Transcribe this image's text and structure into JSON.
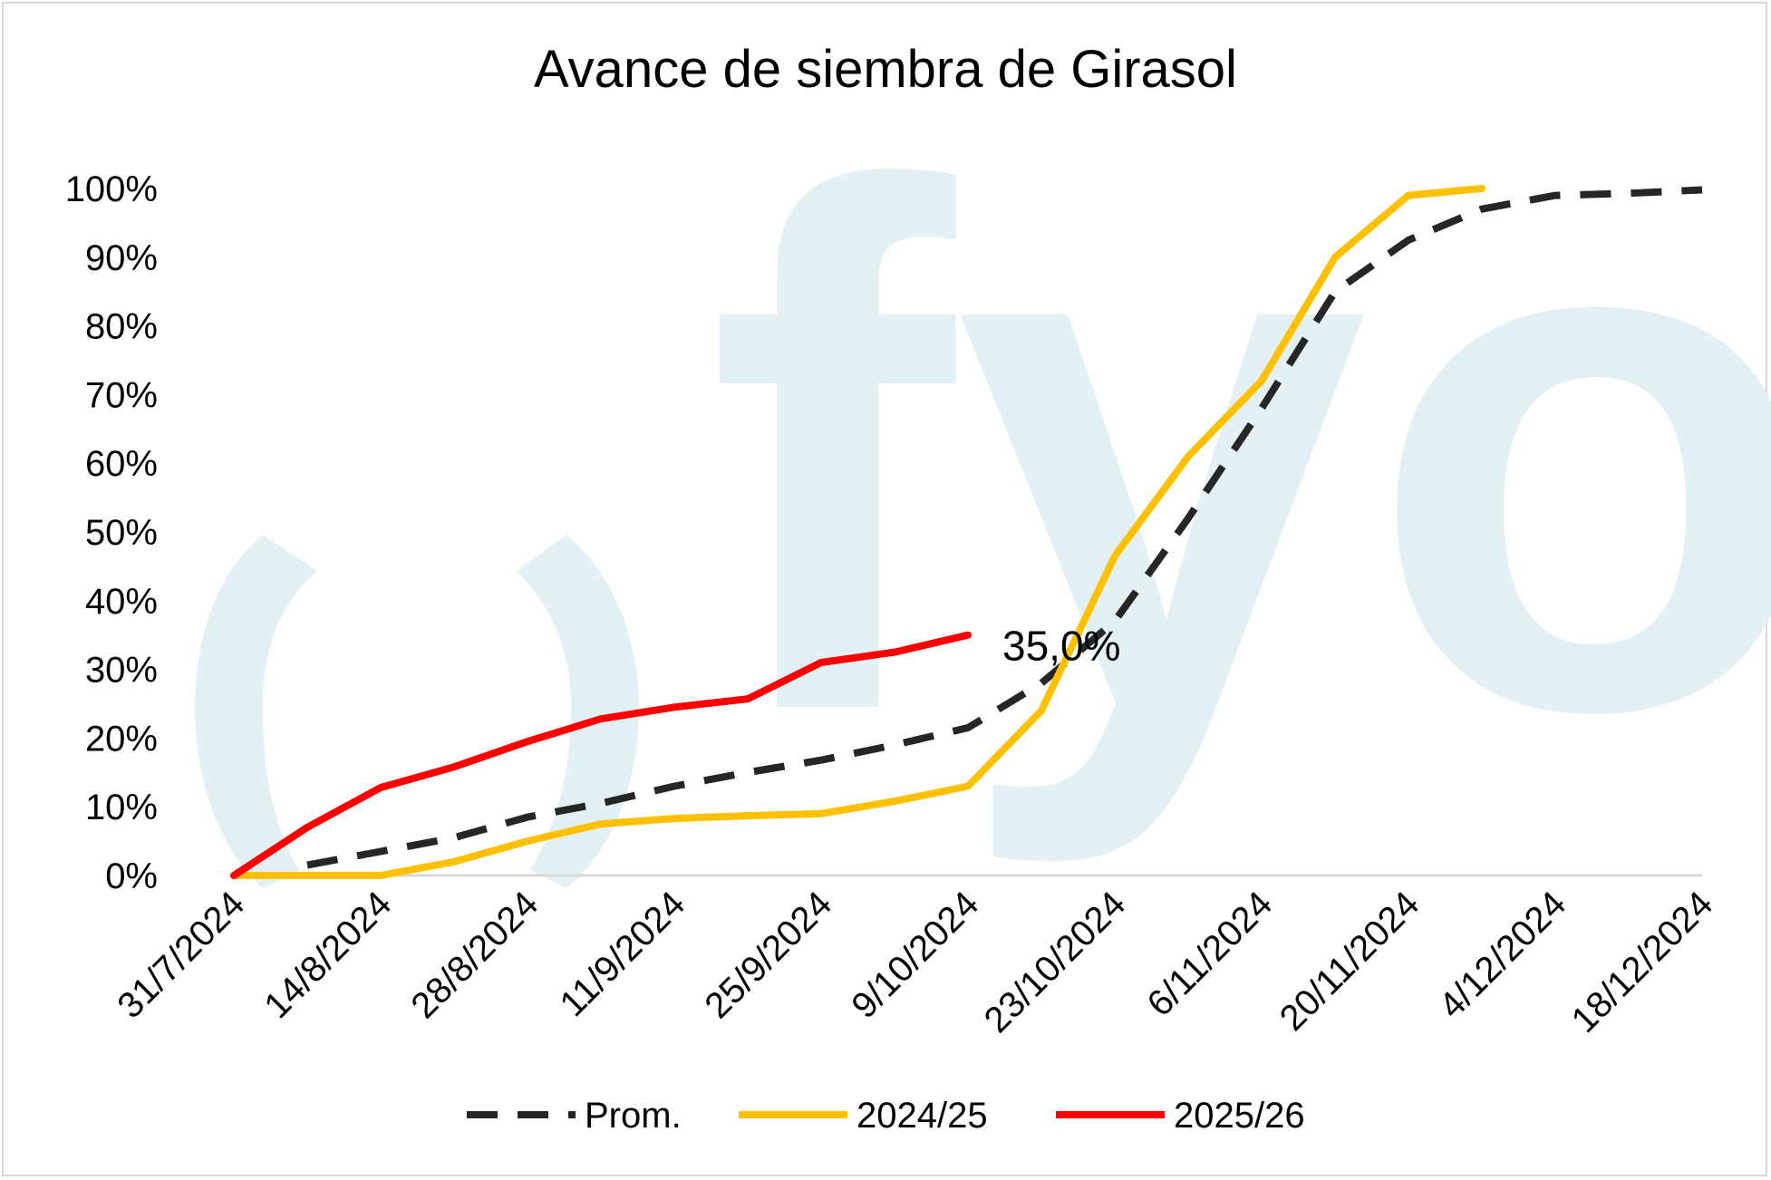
{
  "chart_data": {
    "type": "line",
    "title": "Avance de siembra de Girasol",
    "watermark": "fyo",
    "x_ticks": [
      "31/7/2024",
      "14/8/2024",
      "28/8/2024",
      "11/9/2024",
      "25/9/2024",
      "9/10/2024",
      "23/10/2024",
      "6/11/2024",
      "20/11/2024",
      "4/12/2024",
      "18/12/2024"
    ],
    "y_ticks": [
      "0%",
      "10%",
      "20%",
      "30%",
      "40%",
      "50%",
      "60%",
      "70%",
      "80%",
      "90%",
      "100%"
    ],
    "ylim": [
      0,
      100
    ],
    "xlim": [
      "2024-07-31",
      "2024-12-18"
    ],
    "grid": false,
    "legend_position": "bottom",
    "series": [
      {
        "name": "Prom.",
        "color": "#262626",
        "dash": "dashed",
        "points": [
          [
            "2024-08-07",
            1.5
          ],
          [
            "2024-08-14",
            3.5
          ],
          [
            "2024-08-21",
            5.5
          ],
          [
            "2024-08-28",
            8.5
          ],
          [
            "2024-09-04",
            10.5
          ],
          [
            "2024-09-11",
            13
          ],
          [
            "2024-09-18",
            15
          ],
          [
            "2024-09-25",
            16.8
          ],
          [
            "2024-10-02",
            19
          ],
          [
            "2024-10-09",
            21.5
          ],
          [
            "2024-10-16",
            28
          ],
          [
            "2024-10-23",
            37
          ],
          [
            "2024-10-30",
            52
          ],
          [
            "2024-11-06",
            68
          ],
          [
            "2024-11-13",
            85
          ],
          [
            "2024-11-20",
            92.5
          ],
          [
            "2024-11-27",
            97
          ],
          [
            "2024-12-04",
            99
          ],
          [
            "2024-12-11",
            99.3
          ],
          [
            "2024-12-18",
            99.8
          ]
        ]
      },
      {
        "name": "2024/25",
        "color": "#ffc000",
        "dash": "solid",
        "points": [
          [
            "2024-07-31",
            0
          ],
          [
            "2024-08-07",
            0
          ],
          [
            "2024-08-14",
            0
          ],
          [
            "2024-08-21",
            2
          ],
          [
            "2024-08-28",
            5
          ],
          [
            "2024-09-04",
            7.5
          ],
          [
            "2024-09-11",
            8.3
          ],
          [
            "2024-09-18",
            8.7
          ],
          [
            "2024-09-25",
            9
          ],
          [
            "2024-10-02",
            10.8
          ],
          [
            "2024-10-09",
            13
          ],
          [
            "2024-10-16",
            24
          ],
          [
            "2024-10-23",
            46.5
          ],
          [
            "2024-10-30",
            61
          ],
          [
            "2024-11-06",
            72
          ],
          [
            "2024-11-13",
            90
          ],
          [
            "2024-11-20",
            99
          ],
          [
            "2024-11-27",
            100
          ]
        ]
      },
      {
        "name": "2025/26",
        "color": "#ff0000",
        "dash": "solid",
        "points": [
          [
            "2024-07-31",
            0
          ],
          [
            "2024-08-07",
            7
          ],
          [
            "2024-08-14",
            12.8
          ],
          [
            "2024-08-21",
            15.8
          ],
          [
            "2024-08-28",
            19.5
          ],
          [
            "2024-09-04",
            22.8
          ],
          [
            "2024-09-11",
            24.5
          ],
          [
            "2024-09-18",
            25.7
          ],
          [
            "2024-09-25",
            31
          ],
          [
            "2024-10-02",
            32.5
          ],
          [
            "2024-10-09",
            35
          ]
        ]
      }
    ],
    "annotations": [
      {
        "text": "35,0%",
        "x": "2024-10-09",
        "y": 35
      }
    ]
  }
}
